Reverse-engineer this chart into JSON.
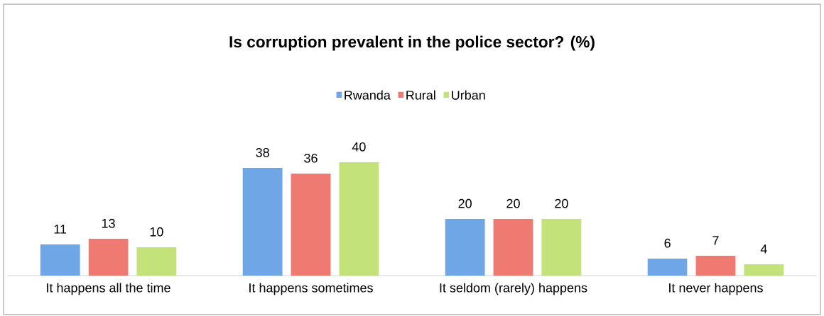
{
  "chart_data": {
    "type": "bar",
    "title": "Is corruption prevalent in the police sector? (%)",
    "categories": [
      "It happens all the time",
      "It happens sometimes",
      "It seldom (rarely) happens",
      "It never happens"
    ],
    "series": [
      {
        "name": "Rwanda",
        "color": "#6fa6e6",
        "values": [
          11,
          38,
          20,
          6
        ]
      },
      {
        "name": "Rural",
        "color": "#ee7a72",
        "values": [
          13,
          36,
          20,
          7
        ]
      },
      {
        "name": "Urban",
        "color": "#c4e27a",
        "values": [
          10,
          40,
          20,
          4
        ]
      }
    ],
    "data_labels": true,
    "legend": "top"
  }
}
